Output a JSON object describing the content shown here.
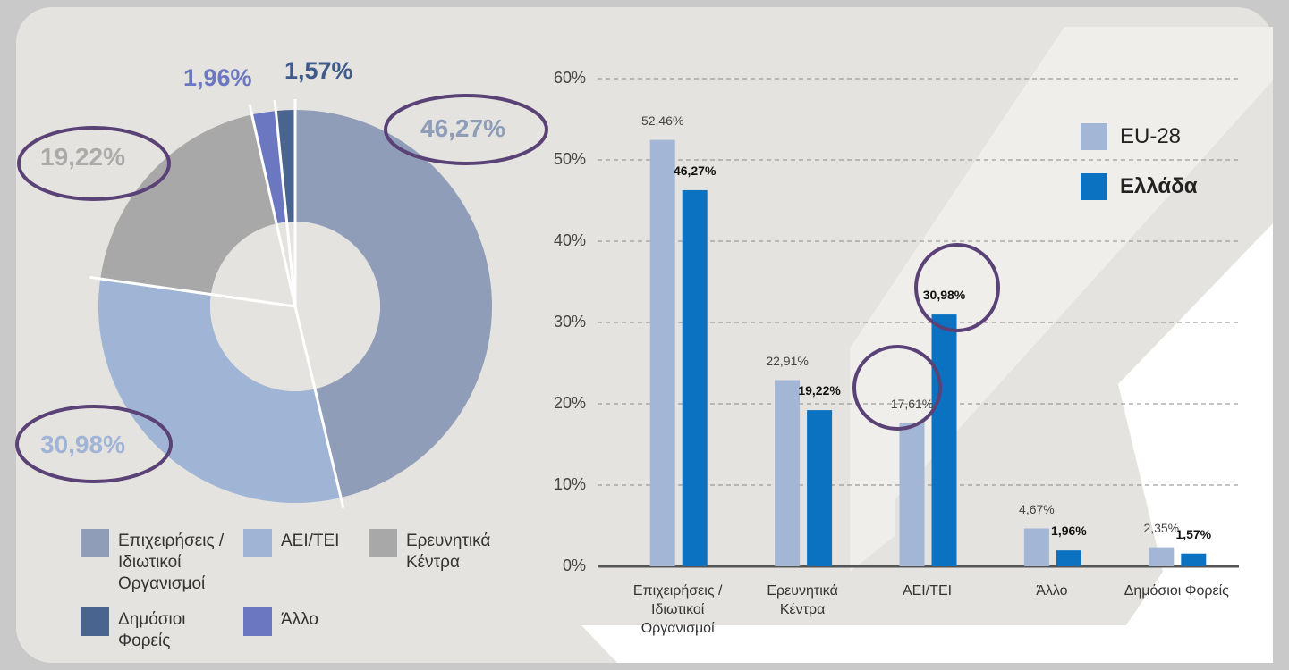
{
  "chart_data": [
    {
      "type": "pie",
      "categories": [
        "Επιχειρήσεις / Ιδιωτικοί Οργανισμοί",
        "ΑΕΙ/ΤΕΙ",
        "Ερευνητικά Κέντρα",
        "Άλλο",
        "Δημόσιοι Φορείς"
      ],
      "values": [
        46.27,
        30.98,
        19.22,
        1.96,
        1.57
      ],
      "value_labels": [
        "46,27%",
        "30,98%",
        "19,22%",
        "1,96%",
        "1,57%"
      ],
      "colors": [
        "#8f9db8",
        "#a0b4d6",
        "#a8a8a8",
        "#6b77c0",
        "#4a6490"
      ],
      "legend_order": [
        0,
        1,
        2,
        4,
        3
      ]
    },
    {
      "type": "bar",
      "categories": [
        "Επιχειρήσεις / Ιδιωτικοί Οργανισμοί",
        "Ερευνητικά Κέντρα",
        "ΑΕΙ/ΤΕΙ",
        "Άλλο",
        "Δημόσιοι Φορείς"
      ],
      "series": [
        {
          "name": "EU-28",
          "color": "#a3b6d5",
          "values": [
            52.46,
            22.91,
            17.61,
            4.67,
            2.35
          ],
          "value_labels": [
            "52,46%",
            "22,91%",
            "17,61%",
            "4,67%",
            "2,35%"
          ]
        },
        {
          "name": "Ελλάδα",
          "color": "#0a72c0",
          "values": [
            46.27,
            19.22,
            30.98,
            1.96,
            1.57
          ],
          "value_labels": [
            "46,27%",
            "19,22%",
            "30,98%",
            "1,96%",
            "1,57%"
          ]
        }
      ],
      "ylim": [
        0,
        60
      ],
      "yticks": [
        {
          "value": 0,
          "label": "0%"
        },
        {
          "value": 10,
          "label": "10%"
        },
        {
          "value": 20,
          "label": "20%"
        },
        {
          "value": 30,
          "label": "30%"
        },
        {
          "value": 40,
          "label": "40%"
        },
        {
          "value": 50,
          "label": "50%"
        },
        {
          "value": 60,
          "label": "60%"
        }
      ],
      "grid": true
    }
  ]
}
